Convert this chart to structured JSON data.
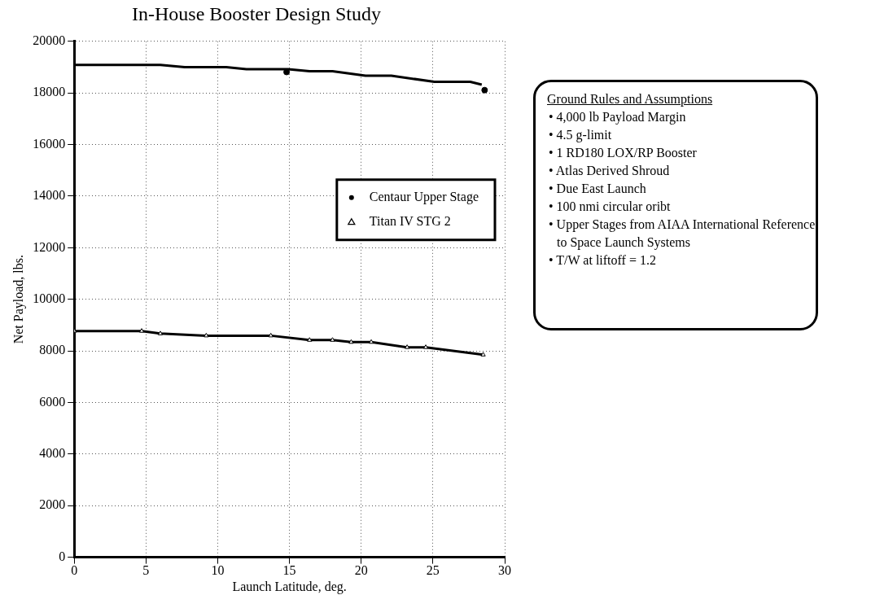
{
  "chart_data": {
    "type": "line",
    "title": "In-House Booster Design Study",
    "xlabel": "Launch Latitude, deg.",
    "ylabel": "Net Payload, lbs.",
    "xlim": [
      0,
      30
    ],
    "xticks": [
      0,
      5,
      10,
      15,
      20,
      25,
      30
    ],
    "ylim": [
      0,
      20000
    ],
    "yticks": [
      0,
      2000,
      4000,
      6000,
      8000,
      10000,
      12000,
      14000,
      16000,
      18000,
      20000
    ],
    "grid": true,
    "legend": "center right",
    "line_style": "solid",
    "series": [
      {
        "type": "line",
        "color": "#000000",
        "marker": "none",
        "x": [
          0,
          6,
          7.7,
          10.6,
          12,
          14.9,
          16.4,
          18,
          20.3,
          22.1,
          25.1,
          27.6,
          28.4
        ],
        "values": [
          19090,
          19090,
          19000,
          19000,
          18920,
          18920,
          18840,
          18840,
          18670,
          18670,
          18430,
          18430,
          18320
        ]
      },
      {
        "type": "scatter",
        "name": "Centaur Upper Stage",
        "color": "#000000",
        "marker": "circle",
        "x": [
          14.8,
          28.6
        ],
        "values": [
          18810,
          18110
        ]
      },
      {
        "name": "Titan IV STG 2",
        "color": "#000000",
        "marker": "triangle",
        "x": [
          0,
          4.7,
          6,
          9.2,
          13.7,
          16.4,
          18,
          19.3,
          20.7,
          23.2,
          24.5,
          28.5
        ],
        "values": [
          8770,
          8770,
          8670,
          8590,
          8590,
          8420,
          8420,
          8340,
          8340,
          8140,
          8140,
          7850
        ]
      }
    ],
    "annotations": [
      "Ground Rules and Assumptions",
      "• 4,000 lb Payload Margin",
      "• 4.5 g-limit",
      "• 1 RD180 LOX/RP Booster",
      "• Atlas Derived Shroud",
      "• Due East Launch",
      "• 100 nmi circular oribt",
      "• Upper Stages from AIAA International Reference to Space Launch Systems",
      "• T/W at liftoff = 1.2"
    ]
  }
}
